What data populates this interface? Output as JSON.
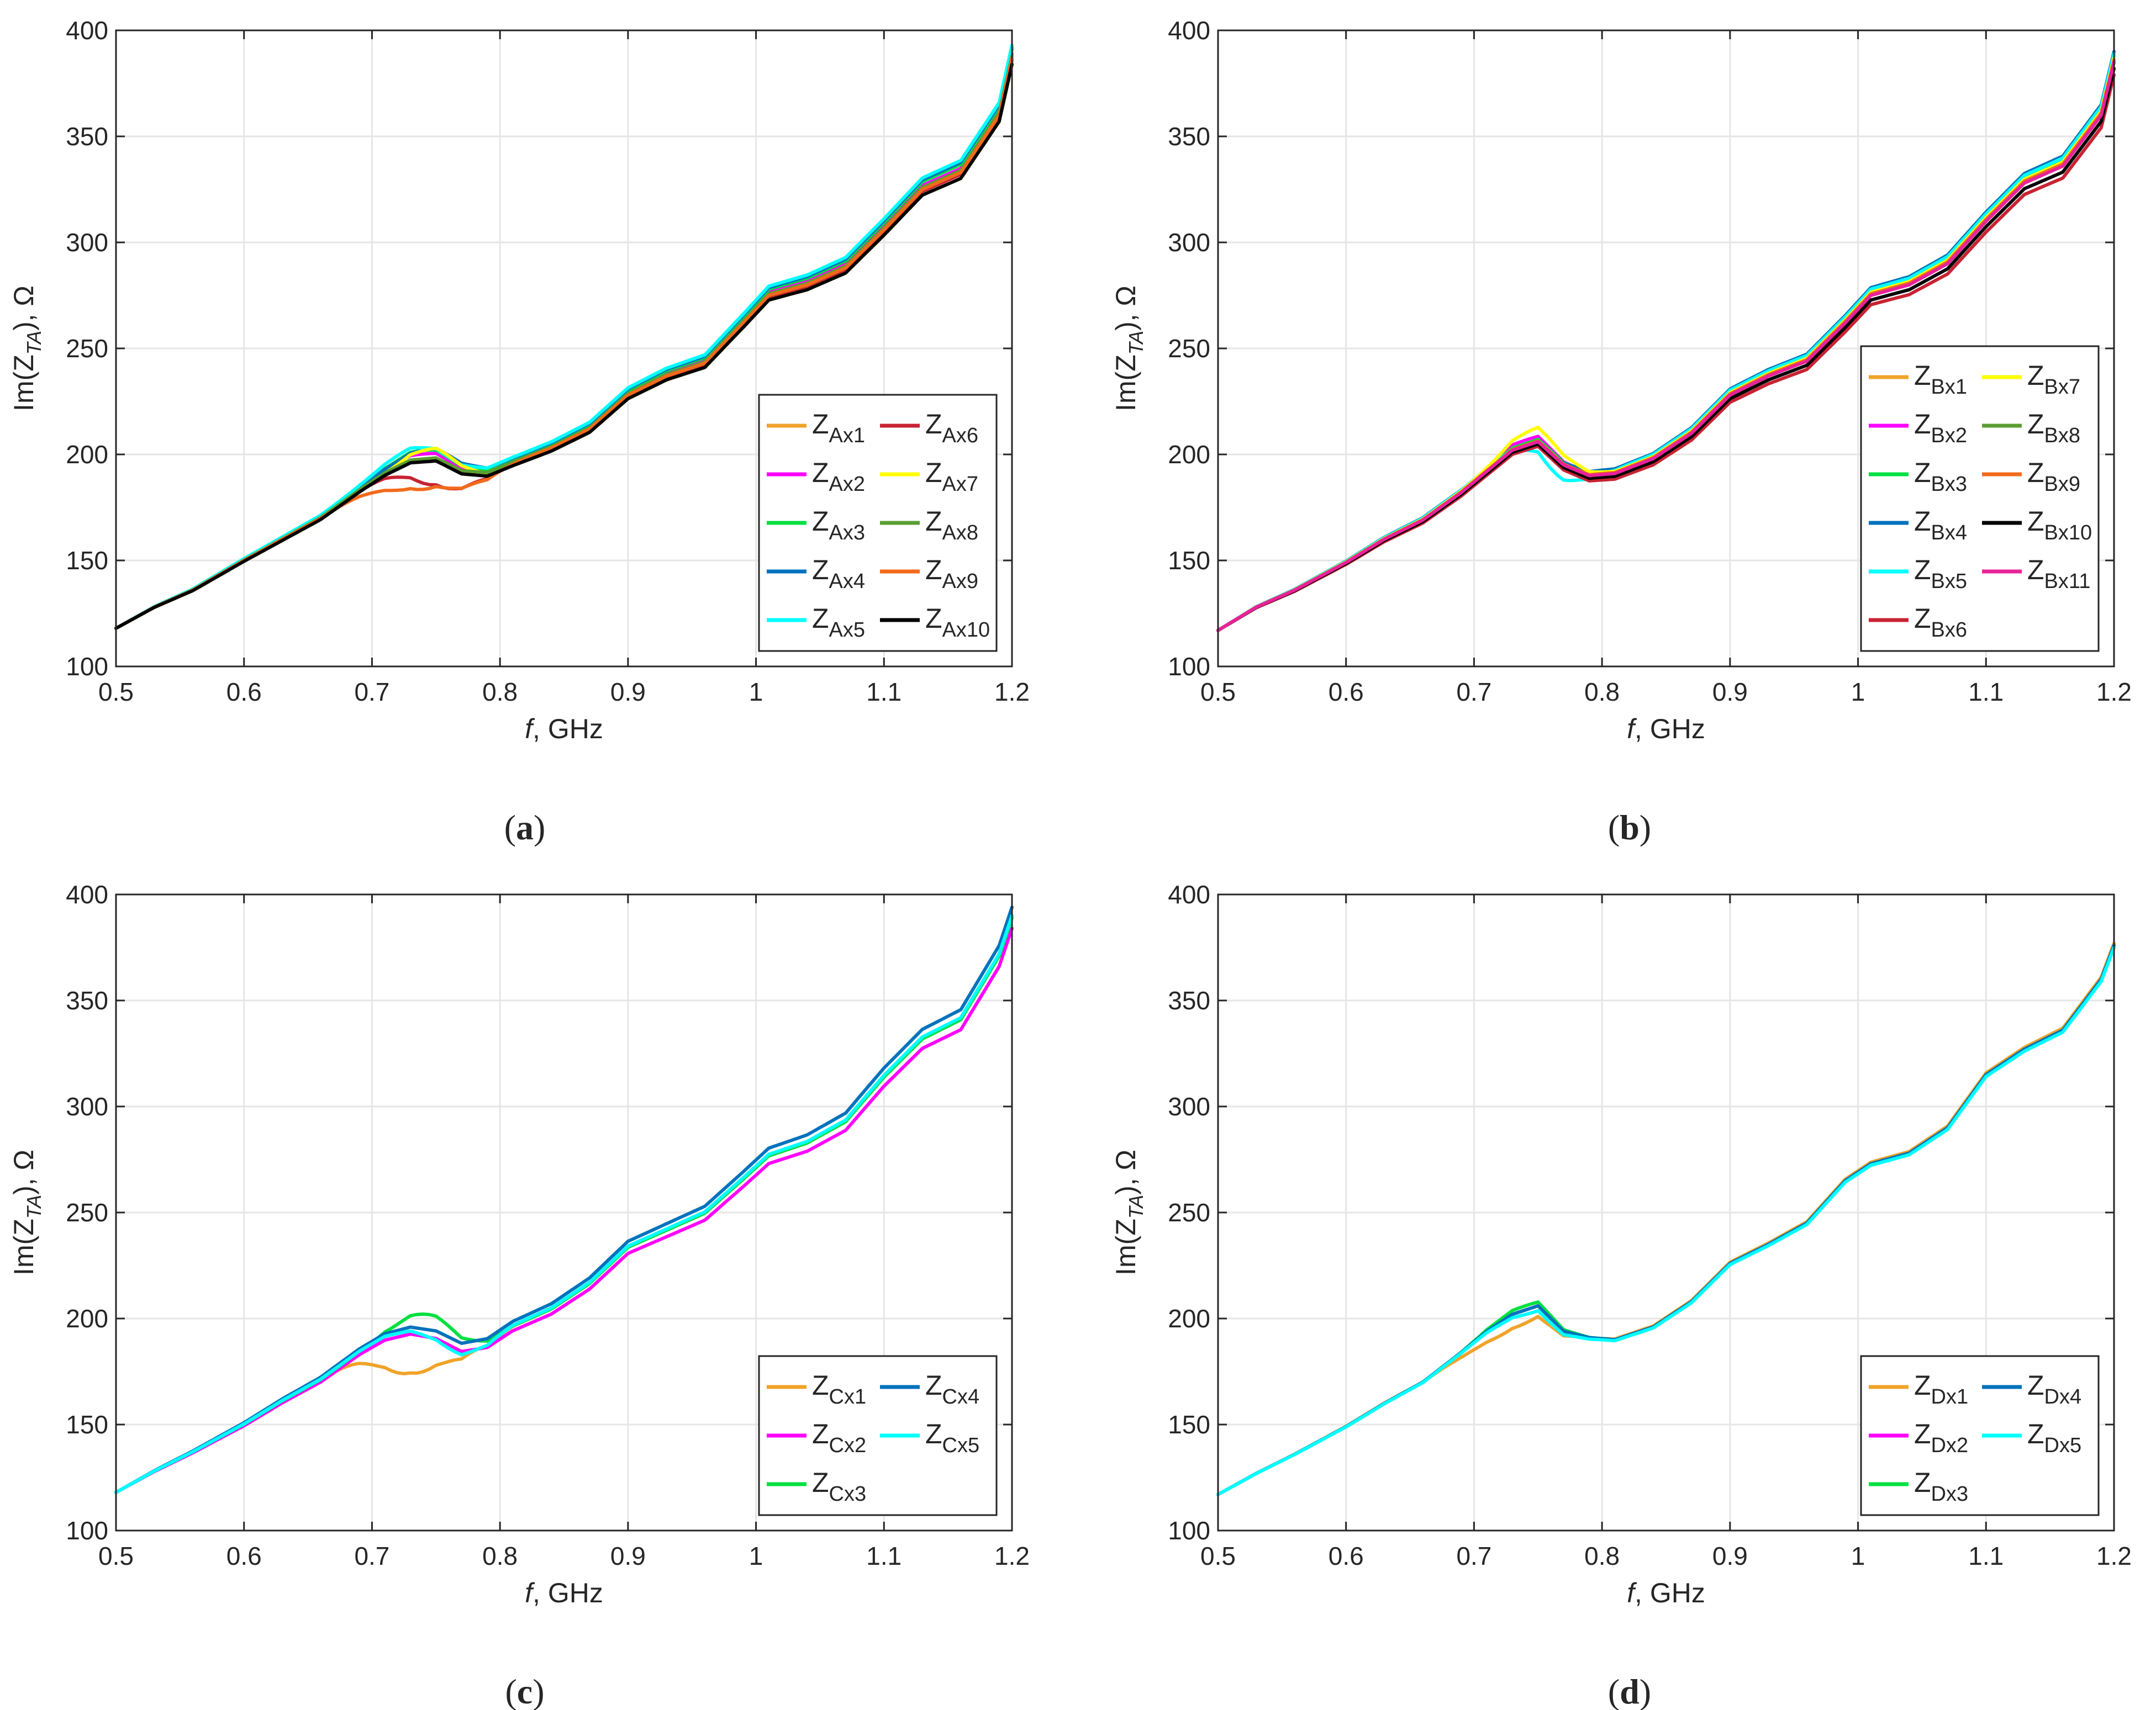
{
  "figure": {
    "captions": [
      "(a)",
      "(b)",
      "(c)",
      "(d)"
    ]
  },
  "chart_data": [
    {
      "id": "a",
      "type": "line",
      "caption": "(a)",
      "ylabel": "Im(ZTA), Ω",
      "xlabel": "f, GHz",
      "xlim": [
        0.5,
        1.2
      ],
      "ylim": [
        100,
        400
      ],
      "xticks": [
        "0.5",
        "0.6",
        "0.7",
        "0.8",
        "0.9",
        "1",
        "1.1",
        "1.2"
      ],
      "yticks": [
        "100",
        "150",
        "200",
        "250",
        "300",
        "350",
        "400"
      ],
      "grid": true,
      "legend_position": "lower-right",
      "legend_columns": 2,
      "base_x": [
        0.5,
        0.53,
        0.56,
        0.6,
        0.63,
        0.66,
        0.69,
        0.71,
        0.73,
        0.75,
        0.77,
        0.79,
        0.81,
        0.84,
        0.87,
        0.9,
        0.93,
        0.96,
        0.99,
        1.01,
        1.04,
        1.07,
        1.1,
        1.13,
        1.16,
        1.19,
        1.2
      ],
      "base_y": [
        118,
        128,
        136,
        150,
        160,
        170,
        183,
        191,
        197,
        198,
        192,
        191,
        196,
        203,
        212,
        228,
        237,
        243,
        262,
        275,
        280,
        288,
        306,
        325,
        333,
        360,
        387
      ],
      "series": [
        {
          "name": "ZAx1",
          "main": "Z",
          "sub": "Ax1",
          "color": "#f0a32a",
          "offset": 0,
          "bump": [
            0,
            0,
            0
          ]
        },
        {
          "name": "ZAx2",
          "main": "Z",
          "sub": "Ax2",
          "color": "#ff00ff",
          "offset": 2,
          "bump": [
            0.74,
            2,
            0.03
          ]
        },
        {
          "name": "ZAx3",
          "main": "Z",
          "sub": "Ax3",
          "color": "#00e040",
          "offset": 4,
          "bump": [
            0.74,
            3,
            0.03
          ]
        },
        {
          "name": "ZAx4",
          "main": "Z",
          "sub": "Ax4",
          "color": "#0072bd",
          "offset": 5,
          "bump": [
            0.75,
            3,
            0.03
          ]
        },
        {
          "name": "ZAx5",
          "main": "Z",
          "sub": "Ax5",
          "color": "#00ffff",
          "offset": 6,
          "bump": [
            0.73,
            4,
            0.03
          ]
        },
        {
          "name": "ZAx6",
          "main": "Z",
          "sub": "Ax6",
          "color": "#c82333",
          "offset": -1,
          "bump": [
            0.75,
            -12,
            0.03
          ]
        },
        {
          "name": "ZAx7",
          "main": "Z",
          "sub": "Ax7",
          "color": "#ffff00",
          "offset": -3,
          "bump": [
            0.75,
            6,
            0.03
          ]
        },
        {
          "name": "ZAx8",
          "main": "Z",
          "sub": "Ax8",
          "color": "#5a9e32",
          "offset": 1,
          "bump": [
            0.74,
            0,
            0.03
          ]
        },
        {
          "name": "ZAx9",
          "main": "Z",
          "sub": "Ax9",
          "color": "#f26a1b",
          "offset": 0,
          "bump": [
            0.74,
            -14,
            0.04
          ]
        },
        {
          "name": "ZAx10",
          "main": "Z",
          "sub": "Ax10",
          "color": "#000000",
          "offset": -3,
          "bump": [
            0,
            0,
            0
          ]
        }
      ]
    },
    {
      "id": "b",
      "type": "line",
      "caption": "(b)",
      "ylabel": "Im(ZTA), Ω",
      "xlabel": "f, GHz",
      "xlim": [
        0.5,
        1.2
      ],
      "ylim": [
        100,
        400
      ],
      "xticks": [
        "0.5",
        "0.6",
        "0.7",
        "0.8",
        "0.9",
        "1",
        "1.1",
        "1.2"
      ],
      "yticks": [
        "100",
        "150",
        "200",
        "250",
        "300",
        "350",
        "400"
      ],
      "grid": true,
      "legend_position": "lower-right",
      "legend_columns": 2,
      "base_x": [
        0.5,
        0.53,
        0.56,
        0.6,
        0.63,
        0.66,
        0.69,
        0.71,
        0.73,
        0.75,
        0.77,
        0.79,
        0.81,
        0.84,
        0.87,
        0.9,
        0.93,
        0.96,
        0.99,
        1.01,
        1.04,
        1.07,
        1.1,
        1.13,
        1.16,
        1.19,
        1.2
      ],
      "base_y": [
        117,
        128,
        136,
        149,
        160,
        169,
        182,
        192,
        202,
        206,
        195,
        190,
        191,
        198,
        210,
        228,
        237,
        244,
        262,
        275,
        280,
        290,
        310,
        328,
        336,
        360,
        385
      ],
      "series": [
        {
          "name": "ZBx1",
          "main": "Z",
          "sub": "Bx1",
          "color": "#f0a32a",
          "offset": 1,
          "bump": [
            0,
            0,
            0
          ]
        },
        {
          "name": "ZBx2",
          "main": "Z",
          "sub": "Bx2",
          "color": "#ff00ff",
          "offset": 2,
          "bump": [
            0.74,
            2,
            0.03
          ]
        },
        {
          "name": "ZBx3",
          "main": "Z",
          "sub": "Bx3",
          "color": "#00e040",
          "offset": 3,
          "bump": [
            0,
            0,
            0
          ]
        },
        {
          "name": "ZBx4",
          "main": "Z",
          "sub": "Bx4",
          "color": "#0072bd",
          "offset": 5,
          "bump": [
            0.74,
            -3,
            0.03
          ]
        },
        {
          "name": "ZBx5",
          "main": "Z",
          "sub": "Bx5",
          "color": "#00ffff",
          "offset": 4,
          "bump": [
            0.765,
            -9,
            0.025
          ]
        },
        {
          "name": "ZBx6",
          "main": "Z",
          "sub": "Bx6",
          "color": "#c82333",
          "offset": -6,
          "bump": [
            0,
            0,
            0
          ]
        },
        {
          "name": "ZBx7",
          "main": "Z",
          "sub": "Bx7",
          "color": "#ffff00",
          "offset": 2,
          "bump": [
            0.75,
            6,
            0.03
          ]
        },
        {
          "name": "ZBx8",
          "main": "Z",
          "sub": "Bx8",
          "color": "#5a9e32",
          "offset": 0,
          "bump": [
            0,
            0,
            0
          ]
        },
        {
          "name": "ZBx9",
          "main": "Z",
          "sub": "Bx9",
          "color": "#f26a1b",
          "offset": 1,
          "bump": [
            0,
            0,
            0
          ]
        },
        {
          "name": "ZBx10",
          "main": "Z",
          "sub": "Bx10",
          "color": "#000000",
          "offset": -3,
          "bump": [
            0,
            0,
            0
          ]
        },
        {
          "name": "ZBx11",
          "main": "Z",
          "sub": "Bx11",
          "color": "#e8229a",
          "offset": 0,
          "bump": [
            0,
            0,
            0
          ]
        }
      ]
    },
    {
      "id": "c",
      "type": "line",
      "caption": "(c)",
      "ylabel": "Im(ZTA), Ω",
      "xlabel": "f, GHz",
      "xlim": [
        0.5,
        1.2
      ],
      "ylim": [
        100,
        400
      ],
      "xticks": [
        "0.5",
        "0.6",
        "0.7",
        "0.8",
        "0.9",
        "1",
        "1.1",
        "1.2"
      ],
      "yticks": [
        "100",
        "150",
        "200",
        "250",
        "300",
        "350",
        "400"
      ],
      "grid": true,
      "legend_position": "lower-right",
      "legend_columns": 2,
      "base_x": [
        0.5,
        0.53,
        0.56,
        0.6,
        0.63,
        0.66,
        0.69,
        0.71,
        0.73,
        0.75,
        0.77,
        0.79,
        0.81,
        0.84,
        0.87,
        0.9,
        0.93,
        0.96,
        0.99,
        1.01,
        1.04,
        1.07,
        1.1,
        1.13,
        1.16,
        1.19,
        1.2
      ],
      "base_y": [
        118,
        128,
        137,
        150,
        161,
        171,
        184,
        191,
        194,
        192,
        186,
        188,
        196,
        204,
        216,
        233,
        241,
        249,
        265,
        276,
        282,
        292,
        313,
        331,
        340,
        370,
        388
      ],
      "series": [
        {
          "name": "ZCx1",
          "main": "Z",
          "sub": "Cx1",
          "color": "#f0a32a",
          "offset": 1,
          "bump": [
            0.73,
            -20,
            0.035
          ]
        },
        {
          "name": "ZCx2",
          "main": "Z",
          "sub": "Cx2",
          "color": "#ff00ff",
          "offset": -4,
          "bump": [
            0,
            0,
            0
          ]
        },
        {
          "name": "ZCx3",
          "main": "Z",
          "sub": "Cx3",
          "color": "#00e040",
          "offset": 1,
          "bump": [
            0.745,
            9,
            0.03
          ]
        },
        {
          "name": "ZCx4",
          "main": "Z",
          "sub": "Cx4",
          "color": "#0072bd",
          "offset": 6,
          "bump": [
            0,
            0,
            0
          ]
        },
        {
          "name": "ZCx5",
          "main": "Z",
          "sub": "Cx5",
          "color": "#00ffff",
          "offset": 2,
          "bump": [
            0.765,
            -4,
            0.025
          ]
        }
      ]
    },
    {
      "id": "d",
      "type": "line",
      "caption": "(d)",
      "ylabel": "Im(ZTA), Ω",
      "xlabel": "f, GHz",
      "xlim": [
        0.5,
        1.2
      ],
      "ylim": [
        100,
        400
      ],
      "xticks": [
        "0.5",
        "0.6",
        "0.7",
        "0.8",
        "0.9",
        "1",
        "1.1",
        "1.2"
      ],
      "yticks": [
        "100",
        "150",
        "200",
        "250",
        "300",
        "350",
        "400"
      ],
      "grid": true,
      "legend_position": "lower-right",
      "legend_columns": 2,
      "base_x": [
        0.5,
        0.53,
        0.56,
        0.6,
        0.63,
        0.66,
        0.69,
        0.71,
        0.73,
        0.75,
        0.77,
        0.79,
        0.81,
        0.84,
        0.87,
        0.9,
        0.93,
        0.96,
        0.99,
        1.01,
        1.04,
        1.07,
        1.1,
        1.13,
        1.16,
        1.19,
        1.2
      ],
      "base_y": [
        117,
        127,
        136,
        149,
        160,
        170,
        184,
        194,
        202,
        206,
        194,
        191,
        190,
        196,
        208,
        226,
        235,
        245,
        265,
        273,
        278,
        290,
        315,
        327,
        336,
        360,
        376
      ],
      "series": [
        {
          "name": "ZDx1",
          "main": "Z",
          "sub": "Dx1",
          "color": "#f0a32a",
          "offset": 1,
          "bump": [
            0.73,
            -7,
            0.04
          ]
        },
        {
          "name": "ZDx2",
          "main": "Z",
          "sub": "Dx2",
          "color": "#ff00ff",
          "offset": 0,
          "bump": [
            0,
            0,
            0
          ]
        },
        {
          "name": "ZDx3",
          "main": "Z",
          "sub": "Dx3",
          "color": "#00e040",
          "offset": 0,
          "bump": [
            0.74,
            2,
            0.03
          ]
        },
        {
          "name": "ZDx4",
          "main": "Z",
          "sub": "Dx4",
          "color": "#0072bd",
          "offset": 0,
          "bump": [
            0,
            0,
            0
          ]
        },
        {
          "name": "ZDx5",
          "main": "Z",
          "sub": "Dx5",
          "color": "#00ffff",
          "offset": -1,
          "bump": [
            0.75,
            -2,
            0.03
          ]
        }
      ]
    }
  ]
}
